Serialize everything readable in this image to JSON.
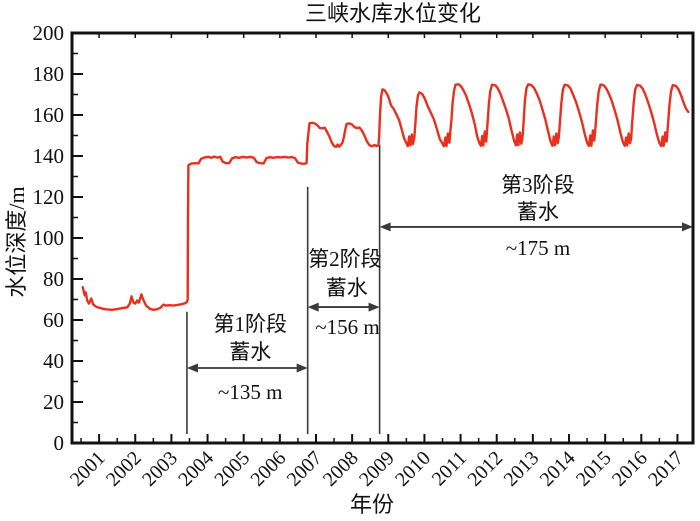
{
  "page": {
    "background": "#ffffff"
  },
  "chart_data": {
    "type": "line",
    "title": "三峡水库水位变化",
    "xlabel": "年份",
    "ylabel": "水位深度/m",
    "xlim": [
      2000.25,
      2017.43
    ],
    "ylim": [
      0,
      200
    ],
    "xticks": [
      2001,
      2002,
      2003,
      2004,
      2005,
      2006,
      2007,
      2008,
      2009,
      2010,
      2011,
      2012,
      2013,
      2014,
      2015,
      2016,
      2017
    ],
    "yticks": [
      0,
      20,
      40,
      60,
      80,
      100,
      120,
      140,
      160,
      180,
      200
    ],
    "x_minor_step": 0.5,
    "y_minor_step": 10,
    "grid": false,
    "legend": "none",
    "line_color": "#e8301f",
    "axis_color": "#111111",
    "annotation_color": "#3a3a3a",
    "series": [
      {
        "name": "水位深度",
        "points": [
          [
            2000.55,
            76
          ],
          [
            2000.6,
            72
          ],
          [
            2000.63,
            73.5
          ],
          [
            2000.67,
            69.5
          ],
          [
            2000.72,
            68
          ],
          [
            2000.78,
            70.5
          ],
          [
            2000.84,
            67.5
          ],
          [
            2000.92,
            66.5
          ],
          [
            2001.0,
            66
          ],
          [
            2001.1,
            65.5
          ],
          [
            2001.2,
            65.2
          ],
          [
            2001.35,
            65
          ],
          [
            2001.5,
            65.3
          ],
          [
            2001.65,
            65.8
          ],
          [
            2001.78,
            66.2
          ],
          [
            2001.85,
            68
          ],
          [
            2001.9,
            71.5
          ],
          [
            2001.95,
            68.5
          ],
          [
            2002.0,
            68
          ],
          [
            2002.05,
            69.5
          ],
          [
            2002.1,
            68.5
          ],
          [
            2002.17,
            72.5
          ],
          [
            2002.22,
            70
          ],
          [
            2002.3,
            67
          ],
          [
            2002.4,
            65.5
          ],
          [
            2002.5,
            65
          ],
          [
            2002.6,
            65.2
          ],
          [
            2002.7,
            66
          ],
          [
            2002.78,
            67.5
          ],
          [
            2002.85,
            67
          ],
          [
            2002.95,
            67.2
          ],
          [
            2003.05,
            67
          ],
          [
            2003.15,
            67.3
          ],
          [
            2003.25,
            67.6
          ],
          [
            2003.35,
            68
          ],
          [
            2003.42,
            68.6
          ],
          [
            2003.45,
            70
          ],
          [
            2003.46,
            110
          ],
          [
            2003.47,
            135.5
          ],
          [
            2003.55,
            136.3
          ],
          [
            2003.65,
            136.5
          ],
          [
            2003.75,
            136.4
          ],
          [
            2003.82,
            138.6
          ],
          [
            2003.92,
            139.3
          ],
          [
            2004.02,
            139.6
          ],
          [
            2004.1,
            139.1
          ],
          [
            2004.18,
            139.7
          ],
          [
            2004.27,
            139.2
          ],
          [
            2004.35,
            139.6
          ],
          [
            2004.42,
            137.2
          ],
          [
            2004.5,
            136.6
          ],
          [
            2004.6,
            136.5
          ],
          [
            2004.68,
            138.9
          ],
          [
            2004.78,
            139.4
          ],
          [
            2004.88,
            139.1
          ],
          [
            2004.98,
            139.6
          ],
          [
            2005.08,
            139.2
          ],
          [
            2005.18,
            139.6
          ],
          [
            2005.28,
            139.1
          ],
          [
            2005.36,
            137
          ],
          [
            2005.45,
            136.5
          ],
          [
            2005.55,
            136.4
          ],
          [
            2005.63,
            139
          ],
          [
            2005.73,
            139.4
          ],
          [
            2005.83,
            139.1
          ],
          [
            2005.93,
            139.5
          ],
          [
            2006.03,
            139.3
          ],
          [
            2006.13,
            139.6
          ],
          [
            2006.23,
            139.2
          ],
          [
            2006.33,
            139.5
          ],
          [
            2006.42,
            139
          ],
          [
            2006.5,
            136.8
          ],
          [
            2006.6,
            136.3
          ],
          [
            2006.68,
            136.2
          ],
          [
            2006.74,
            136.6
          ],
          [
            2006.76,
            146
          ],
          [
            2006.79,
            151
          ],
          [
            2006.82,
            156
          ],
          [
            2006.9,
            156.2
          ],
          [
            2006.98,
            155.7
          ],
          [
            2007.04,
            155
          ],
          [
            2007.1,
            153.7
          ],
          [
            2007.17,
            153.5
          ],
          [
            2007.24,
            153.8
          ],
          [
            2007.3,
            152
          ],
          [
            2007.37,
            149.5
          ],
          [
            2007.44,
            146.5
          ],
          [
            2007.5,
            144.8
          ],
          [
            2007.56,
            144.5
          ],
          [
            2007.6,
            145.6
          ],
          [
            2007.64,
            144.6
          ],
          [
            2007.68,
            145.3
          ],
          [
            2007.73,
            146.5
          ],
          [
            2007.77,
            149
          ],
          [
            2007.81,
            153
          ],
          [
            2007.85,
            155.7
          ],
          [
            2007.93,
            155.9
          ],
          [
            2008.0,
            155.3
          ],
          [
            2008.07,
            154
          ],
          [
            2008.13,
            153.6
          ],
          [
            2008.2,
            153.9
          ],
          [
            2008.27,
            152.4
          ],
          [
            2008.34,
            150
          ],
          [
            2008.41,
            147
          ],
          [
            2008.48,
            145.2
          ],
          [
            2008.55,
            144.8
          ],
          [
            2008.62,
            145.3
          ],
          [
            2008.68,
            144.9
          ],
          [
            2008.73,
            145.2
          ],
          [
            2008.75,
            150
          ],
          [
            2008.77,
            160
          ],
          [
            2008.8,
            169
          ],
          [
            2008.84,
            172.5
          ],
          [
            2008.9,
            172
          ],
          [
            2008.96,
            170.5
          ],
          [
            2009.02,
            168
          ],
          [
            2009.08,
            164.5
          ],
          [
            2009.15,
            163
          ],
          [
            2009.22,
            160.5
          ],
          [
            2009.3,
            157.5
          ],
          [
            2009.37,
            153
          ],
          [
            2009.44,
            148.5
          ],
          [
            2009.5,
            146.2
          ],
          [
            2009.54,
            144.8
          ],
          [
            2009.58,
            149.5
          ],
          [
            2009.61,
            145.2
          ],
          [
            2009.65,
            150.5
          ],
          [
            2009.68,
            145.8
          ],
          [
            2009.72,
            149
          ],
          [
            2009.75,
            156
          ],
          [
            2009.78,
            164
          ],
          [
            2009.82,
            169.5
          ],
          [
            2009.86,
            171
          ],
          [
            2009.94,
            170.2
          ],
          [
            2010.02,
            167.5
          ],
          [
            2010.1,
            164
          ],
          [
            2010.18,
            161
          ],
          [
            2010.26,
            158
          ],
          [
            2010.34,
            153.5
          ],
          [
            2010.42,
            148.5
          ],
          [
            2010.5,
            146
          ],
          [
            2010.54,
            144.8
          ],
          [
            2010.58,
            149
          ],
          [
            2010.61,
            144.9
          ],
          [
            2010.65,
            151
          ],
          [
            2010.69,
            146.5
          ],
          [
            2010.72,
            153
          ],
          [
            2010.75,
            158
          ],
          [
            2010.78,
            166
          ],
          [
            2010.82,
            172
          ],
          [
            2010.86,
            174.8
          ],
          [
            2010.95,
            175
          ],
          [
            2011.02,
            173.8
          ],
          [
            2011.08,
            172
          ],
          [
            2011.15,
            169.5
          ],
          [
            2011.23,
            165.5
          ],
          [
            2011.31,
            161
          ],
          [
            2011.39,
            155.5
          ],
          [
            2011.46,
            149.5
          ],
          [
            2011.52,
            146.3
          ],
          [
            2011.56,
            145
          ],
          [
            2011.6,
            149.8
          ],
          [
            2011.63,
            145.1
          ],
          [
            2011.67,
            152
          ],
          [
            2011.71,
            147
          ],
          [
            2011.75,
            157
          ],
          [
            2011.78,
            165
          ],
          [
            2011.82,
            171.5
          ],
          [
            2011.87,
            174.8
          ],
          [
            2011.96,
            174.5
          ],
          [
            2012.03,
            173
          ],
          [
            2012.1,
            170.5
          ],
          [
            2012.17,
            167
          ],
          [
            2012.25,
            163
          ],
          [
            2012.33,
            158.5
          ],
          [
            2012.41,
            152.5
          ],
          [
            2012.48,
            147.5
          ],
          [
            2012.53,
            145.2
          ],
          [
            2012.57,
            150.5
          ],
          [
            2012.6,
            145.3
          ],
          [
            2012.64,
            151.5
          ],
          [
            2012.68,
            146
          ],
          [
            2012.72,
            150
          ],
          [
            2012.75,
            158
          ],
          [
            2012.78,
            167
          ],
          [
            2012.82,
            173
          ],
          [
            2012.87,
            175
          ],
          [
            2012.96,
            174.6
          ],
          [
            2013.03,
            173.2
          ],
          [
            2013.1,
            170.8
          ],
          [
            2013.18,
            167.5
          ],
          [
            2013.26,
            163
          ],
          [
            2013.34,
            158
          ],
          [
            2013.42,
            152
          ],
          [
            2013.49,
            147
          ],
          [
            2013.54,
            145
          ],
          [
            2013.58,
            149.5
          ],
          [
            2013.61,
            145.2
          ],
          [
            2013.65,
            151
          ],
          [
            2013.69,
            146.2
          ],
          [
            2013.72,
            149.5
          ],
          [
            2013.75,
            157
          ],
          [
            2013.79,
            166
          ],
          [
            2013.83,
            172.5
          ],
          [
            2013.88,
            174.8
          ],
          [
            2013.97,
            174.4
          ],
          [
            2014.04,
            173
          ],
          [
            2014.11,
            170
          ],
          [
            2014.19,
            166.5
          ],
          [
            2014.27,
            162
          ],
          [
            2014.35,
            157
          ],
          [
            2014.43,
            151
          ],
          [
            2014.5,
            146.5
          ],
          [
            2014.55,
            144.9
          ],
          [
            2014.59,
            150
          ],
          [
            2014.62,
            145
          ],
          [
            2014.66,
            152.5
          ],
          [
            2014.7,
            147.5
          ],
          [
            2014.74,
            156
          ],
          [
            2014.78,
            165
          ],
          [
            2014.82,
            171.5
          ],
          [
            2014.87,
            174.9
          ],
          [
            2014.96,
            174.5
          ],
          [
            2015.03,
            173
          ],
          [
            2015.1,
            170.5
          ],
          [
            2015.18,
            167
          ],
          [
            2015.26,
            162.5
          ],
          [
            2015.34,
            157.5
          ],
          [
            2015.42,
            151.5
          ],
          [
            2015.49,
            146.8
          ],
          [
            2015.54,
            145
          ],
          [
            2015.58,
            149
          ],
          [
            2015.61,
            145.1
          ],
          [
            2015.65,
            151
          ],
          [
            2015.69,
            146.3
          ],
          [
            2015.72,
            149
          ],
          [
            2015.75,
            157
          ],
          [
            2015.79,
            166
          ],
          [
            2015.83,
            172.5
          ],
          [
            2015.88,
            174.7
          ],
          [
            2015.97,
            174.3
          ],
          [
            2016.04,
            172.8
          ],
          [
            2016.11,
            170
          ],
          [
            2016.19,
            166
          ],
          [
            2016.27,
            161.5
          ],
          [
            2016.35,
            156.5
          ],
          [
            2016.43,
            150.5
          ],
          [
            2016.5,
            146.3
          ],
          [
            2016.55,
            144.9
          ],
          [
            2016.59,
            149.5
          ],
          [
            2016.62,
            145
          ],
          [
            2016.66,
            151.5
          ],
          [
            2016.7,
            147
          ],
          [
            2016.74,
            156
          ],
          [
            2016.78,
            165
          ],
          [
            2016.82,
            171.5
          ],
          [
            2016.87,
            174.6
          ],
          [
            2016.96,
            174.2
          ],
          [
            2017.03,
            172.5
          ],
          [
            2017.1,
            169.5
          ],
          [
            2017.17,
            166
          ],
          [
            2017.24,
            163
          ],
          [
            2017.3,
            161.5
          ]
        ]
      }
    ],
    "annotations": {
      "dividers": [
        {
          "year": 2003.43,
          "top": 64,
          "bottom": 4.4
        },
        {
          "year": 2006.77,
          "top": 124.9,
          "bottom": 4.4
        },
        {
          "year": 2008.76,
          "top": 145.4,
          "bottom": 4.4
        }
      ],
      "arrows": [
        {
          "level": 36.6,
          "from": 2003.43,
          "to": 2006.77
        },
        {
          "level": 66.3,
          "from": 2006.77,
          "to": 2008.76
        },
        {
          "level": 105.4,
          "from": 2008.76,
          "to": 2017.43
        }
      ],
      "labels": [
        {
          "text": "第1阶段",
          "year": 2005.18,
          "level": 58
        },
        {
          "text": "蓄水",
          "year": 2005.18,
          "level": 44.4
        },
        {
          "text": "~135 m",
          "year": 2005.18,
          "level": 24.9
        },
        {
          "text": "第2阶段",
          "year": 2007.8,
          "level": 89.8
        },
        {
          "text": "蓄水",
          "year": 2007.85,
          "level": 75.6
        },
        {
          "text": "~156 m",
          "year": 2007.87,
          "level": 56.6
        },
        {
          "text": "第3阶段",
          "year": 2013.14,
          "level": 125.9
        },
        {
          "text": "蓄水",
          "year": 2013.14,
          "level": 112.7
        },
        {
          "text": "~175 m",
          "year": 2013.14,
          "level": 95.1
        }
      ]
    }
  }
}
